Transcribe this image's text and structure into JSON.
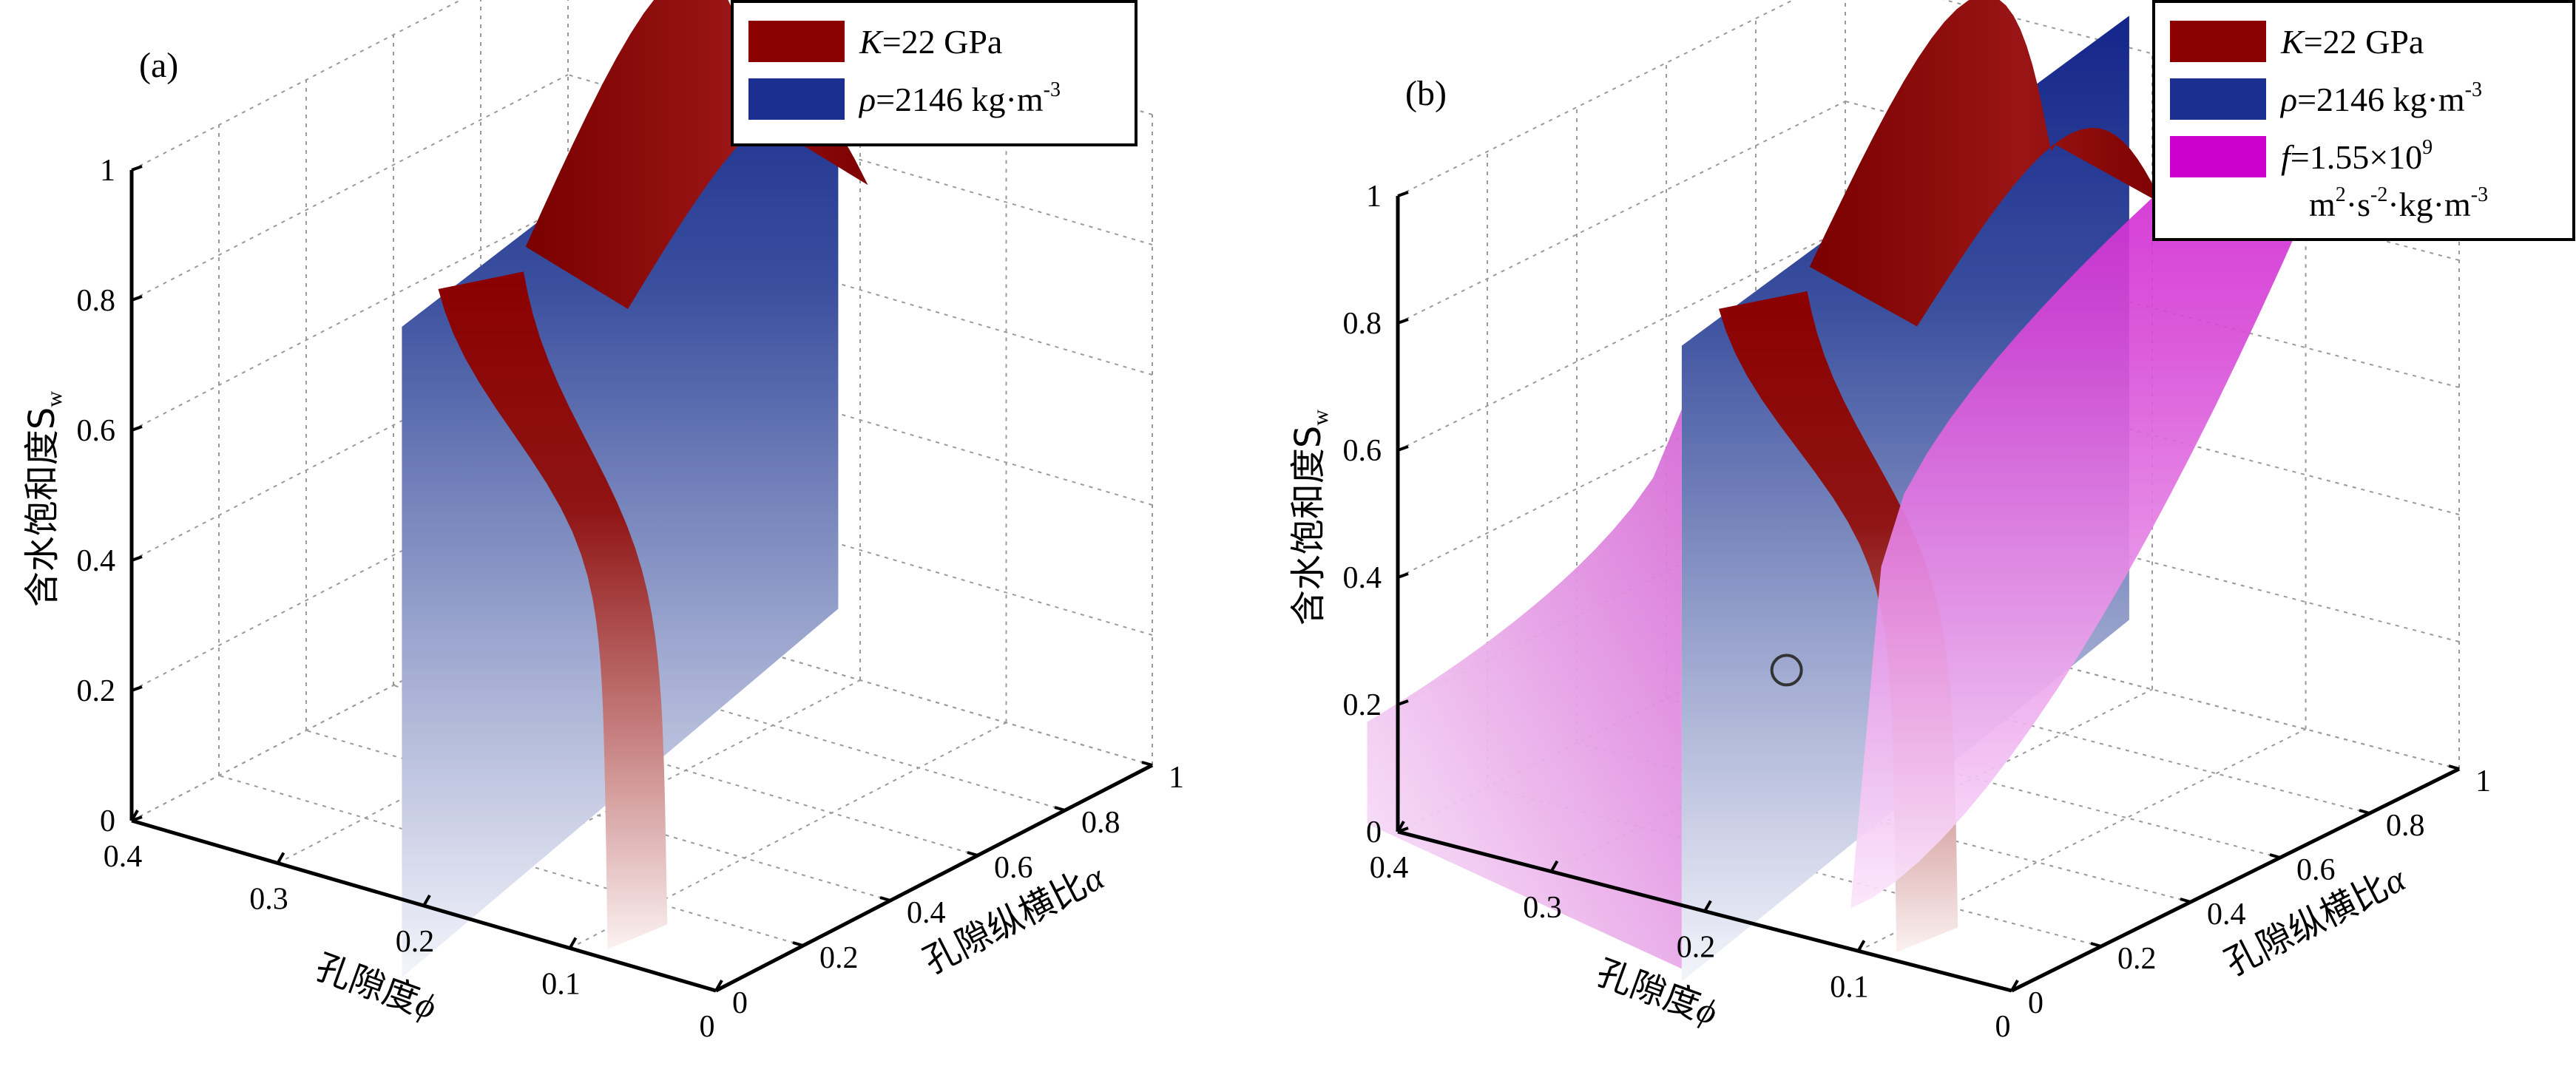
{
  "chart_data": [
    {
      "type": "3d-surface",
      "panel_label": "(a)",
      "zlabel": "含水饱和度S",
      "zlabel_sub": "w",
      "xlabel": "孔隙度",
      "xlabel_sym": "ϕ",
      "ylabel": "孔隙纵横比",
      "ylabel_sym": "α",
      "z_ticks": [
        "0",
        "0.2",
        "0.4",
        "0.6",
        "0.8",
        "1"
      ],
      "phi_ticks": [
        "0.4",
        "0.3",
        "0.2",
        "0.1",
        "0"
      ],
      "alpha_ticks": [
        "0",
        "0.2",
        "0.4",
        "0.6",
        "0.8",
        "1"
      ],
      "phi_range": [
        0,
        0.4
      ],
      "alpha_range": [
        0,
        1
      ],
      "sw_range": [
        0,
        1
      ],
      "series": [
        {
          "name": "K",
          "legend_sym": "K",
          "legend_text": "=22 GPa",
          "color": "#8b0000",
          "description": "iso-surface of bulk modulus K = 22 GPa"
        },
        {
          "name": "rho",
          "legend_sym": "ρ",
          "legend_text": "=2146 kg·m",
          "legend_sup": "-3",
          "color": "#1a2f8f",
          "description": "iso-surface of density ρ = 2146 kg·m^-3 (plane at constant porosity)"
        }
      ]
    },
    {
      "type": "3d-surface",
      "panel_label": "(b)",
      "zlabel": "含水饱和度S",
      "zlabel_sub": "w",
      "xlabel": "孔隙度",
      "xlabel_sym": "ϕ",
      "ylabel": "孔隙纵横比",
      "ylabel_sym": "α",
      "z_ticks": [
        "0",
        "0.2",
        "0.4",
        "0.6",
        "0.8",
        "1"
      ],
      "phi_ticks": [
        "0.4",
        "0.3",
        "0.2",
        "0.1",
        "0"
      ],
      "alpha_ticks": [
        "0",
        "0.2",
        "0.4",
        "0.6",
        "0.8",
        "1"
      ],
      "phi_range": [
        0,
        0.4
      ],
      "alpha_range": [
        0,
        1
      ],
      "sw_range": [
        0,
        1
      ],
      "intersection_point": {
        "sw": 0.37
      },
      "series": [
        {
          "name": "K",
          "legend_sym": "K",
          "legend_text": "=22 GPa",
          "color": "#8b0000"
        },
        {
          "name": "rho",
          "legend_sym": "ρ",
          "legend_text": "=2146 kg·m",
          "legend_sup": "-3",
          "color": "#1a2f8f"
        },
        {
          "name": "f",
          "legend_sym": "f",
          "legend_text": "=1.55×10",
          "legend_sup": "9",
          "legend_line2": "m",
          "legend_line2_sup1": "2",
          "legend_line2_mid": "·s",
          "legend_line2_sup2": "-2",
          "legend_line2_end": "·kg·m",
          "legend_line2_sup3": "-3",
          "color": "#cc00cc"
        }
      ]
    }
  ]
}
